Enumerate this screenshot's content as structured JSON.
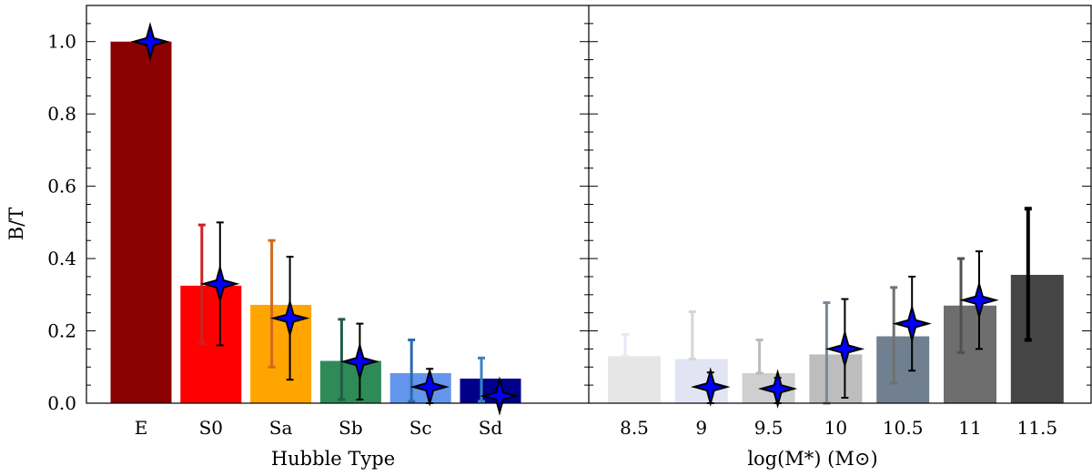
{
  "chart_data": [
    {
      "type": "bar",
      "panel": "left",
      "xlabel": "Hubble Type",
      "ylabel": "B/T",
      "ylim": [
        0.0,
        1.1
      ],
      "yticks": [
        0.0,
        0.2,
        0.4,
        0.6,
        0.8,
        1.0
      ],
      "ytick_labels": [
        "0.0",
        "0.2",
        "0.4",
        "0.6",
        "0.8",
        "1.0"
      ],
      "categories": [
        "E",
        "S0",
        "Sa",
        "Sb",
        "Sc",
        "Sd"
      ],
      "bar_colors": [
        "#8b0000",
        "#ff0000",
        "#ffa500",
        "#2e8b57",
        "#6495ed",
        "#00008b"
      ],
      "errbar_colors": [
        "#8b0000",
        "#cc2222",
        "#d2691e",
        "#1e5e45",
        "#2a6ab0",
        "#3b82c4"
      ],
      "series": [
        {
          "kind": "bar",
          "values": [
            1.0,
            0.325,
            0.272,
            0.117,
            0.083,
            0.068
          ],
          "err_low": [
            1.0,
            0.165,
            0.1,
            0.01,
            0.005,
            0.005
          ],
          "err_high": [
            1.0,
            0.493,
            0.45,
            0.232,
            0.175,
            0.125
          ]
        },
        {
          "kind": "star",
          "values": [
            1.0,
            0.33,
            0.235,
            0.115,
            0.045,
            0.02
          ],
          "err_low": [
            1.0,
            0.16,
            0.065,
            0.01,
            0.0,
            0.0
          ],
          "err_high": [
            1.0,
            0.5,
            0.405,
            0.22,
            0.095,
            0.03
          ]
        }
      ]
    },
    {
      "type": "bar",
      "panel": "right",
      "xlabel": "log(M*) (M⊙)",
      "ylim": [
        0.0,
        1.1
      ],
      "categories": [
        "8.5",
        "9",
        "9.5",
        "10",
        "10.5",
        "11",
        "11.5"
      ],
      "bar_colors": [
        "#e6e6e6",
        "#e2e4f4",
        "#cfcfcf",
        "#bdbdbd",
        "#708090",
        "#6e6e6e",
        "#454545"
      ],
      "errbar_colors": [
        "#e8e8f5",
        "#d6d6d6",
        "#bbbbbb",
        "#778899",
        "#707070",
        "#505050",
        "#000000"
      ],
      "series": [
        {
          "kind": "bar",
          "values": [
            0.13,
            0.122,
            0.083,
            0.135,
            0.185,
            0.27,
            0.355
          ],
          "err_low": [
            0.13,
            0.122,
            0.083,
            0.0,
            0.055,
            0.14,
            0.175
          ],
          "err_high": [
            0.19,
            0.253,
            0.175,
            0.278,
            0.32,
            0.4,
            0.538
          ]
        },
        {
          "kind": "star",
          "values": [
            null,
            0.045,
            0.04,
            0.15,
            0.22,
            0.285,
            null
          ],
          "err_low": [
            null,
            0.0,
            0.0,
            0.015,
            0.09,
            0.15,
            null
          ],
          "err_high": [
            null,
            0.085,
            0.07,
            0.288,
            0.35,
            0.42,
            null
          ]
        }
      ],
      "star_color": "#0000ff"
    }
  ]
}
